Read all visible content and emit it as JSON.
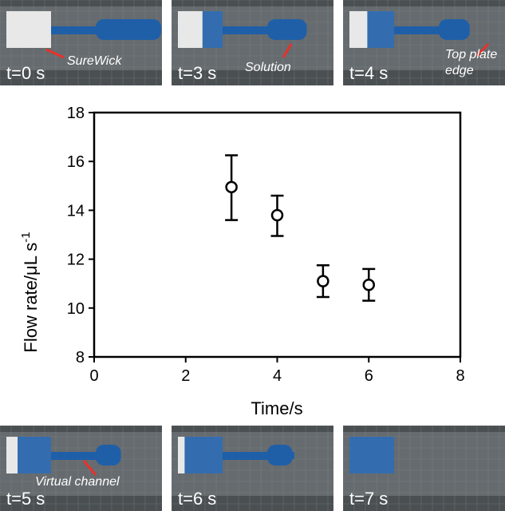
{
  "panels_top": [
    {
      "time": "t=0 s",
      "annotation": "SureWick",
      "fill": 0.0
    },
    {
      "time": "t=3 s",
      "annotation": "Solution",
      "fill": 0.45
    },
    {
      "time": "t=4 s",
      "annotation": "Top plate",
      "annotation2": "edge",
      "fill": 0.6
    }
  ],
  "panels_bottom": [
    {
      "time": "t=5 s",
      "annotation": "Virtual channel",
      "fill": 0.75
    },
    {
      "time": "t=6 s",
      "annotation": "",
      "fill": 0.85
    },
    {
      "time": "t=7 s",
      "annotation": "",
      "fill": 1.0
    }
  ],
  "colors": {
    "dye": "#1f5fa8",
    "wick": "#e8e8e8",
    "arrow": "#e8312a",
    "grid": "#8a8f92",
    "bg": "#4a4f52"
  },
  "chart_data": {
    "type": "scatter",
    "xlabel": "Time/s",
    "ylabel": "Flow rate/μL s",
    "ylabel_sup": "-1",
    "xlim": [
      0,
      8
    ],
    "ylim": [
      8,
      18
    ],
    "xticks": [
      0,
      2,
      4,
      6,
      8
    ],
    "yticks": [
      8,
      10,
      12,
      14,
      16,
      18
    ],
    "grid": false,
    "points": [
      {
        "x": 3,
        "y": 14.95,
        "err_low": 13.6,
        "err_high": 16.25
      },
      {
        "x": 4,
        "y": 13.8,
        "err_low": 12.95,
        "err_high": 14.6
      },
      {
        "x": 5,
        "y": 11.1,
        "err_low": 10.45,
        "err_high": 11.75
      },
      {
        "x": 6,
        "y": 10.95,
        "err_low": 10.3,
        "err_high": 11.6
      }
    ]
  }
}
